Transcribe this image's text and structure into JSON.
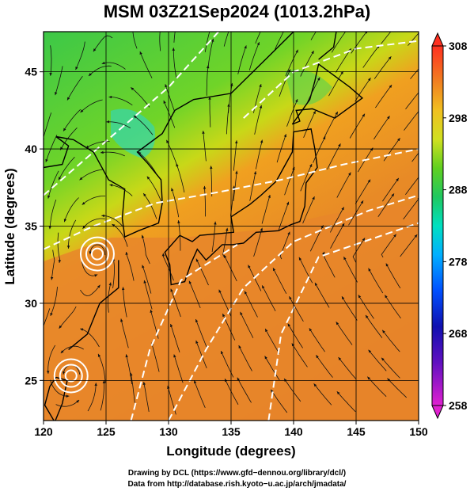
{
  "title": "MSM 03Z21Sep2024 (1013.2hPa)",
  "x_axis": {
    "label": "Longitude (degrees)",
    "ticks": [
      "120",
      "125",
      "130",
      "135",
      "140",
      "145",
      "150"
    ],
    "range": [
      120,
      150
    ]
  },
  "y_axis": {
    "label": "Latitude  (degrees)",
    "ticks": [
      "25",
      "30",
      "35",
      "40",
      "45"
    ],
    "range": [
      22.4,
      47.6
    ]
  },
  "colorbar": {
    "ticks": [
      "308",
      "298",
      "288",
      "278",
      "268",
      "258"
    ],
    "range": [
      258,
      308
    ],
    "colors": [
      "#e020d0",
      "#1010b0",
      "#0040ff",
      "#00b0ff",
      "#00e0c0",
      "#20c060",
      "#60d020",
      "#d0e020",
      "#f0c020",
      "#f09020",
      "#f05020",
      "#ff3020"
    ]
  },
  "field_colors": {
    "cool_north": "#40c840",
    "mid": "#90d820",
    "warm": "#e88828",
    "hot": "#e07020",
    "cold_patch": "#30d8b0"
  },
  "credits": {
    "line1": "Drawing by DCL (https://www.gfd−dennou.org/library/dcl/)",
    "line2": "Data from http://database.rish.kyoto−u.ac.jp/arch/jmadata/"
  }
}
